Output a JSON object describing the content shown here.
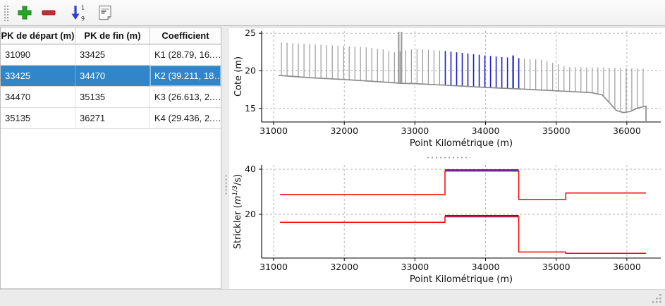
{
  "toolbar": {
    "buttons": [
      {
        "name": "add",
        "icon": "plus-icon"
      },
      {
        "name": "remove",
        "icon": "minus-icon"
      },
      {
        "name": "sort",
        "icon": "sort-ascending-icon"
      },
      {
        "name": "edit-notes",
        "icon": "notes-icon"
      }
    ]
  },
  "table": {
    "headers": [
      "PK de départ (m)",
      "PK de fin (m)",
      "Coefficient"
    ],
    "rows": [
      {
        "start": "31090",
        "end": "33425",
        "coef": "K1 (28.79, 16.…",
        "selected": false
      },
      {
        "start": "33425",
        "end": "34470",
        "coef": "K2 (39.211, 18…",
        "selected": true
      },
      {
        "start": "34470",
        "end": "35135",
        "coef": "K3 (26.613, 2.…",
        "selected": false
      },
      {
        "start": "35135",
        "end": "36271",
        "coef": "K4 (29.436, 2.…",
        "selected": false
      }
    ]
  },
  "colors": {
    "selection": "#3086c8",
    "icon_add_green": "#27a427",
    "icon_remove_red": "#c62f2f",
    "icon_sort_blue": "#2b41c8",
    "chart_red": "#ff0000",
    "chart_blue": "#2121d6",
    "comb_gray": "#9a9a9a",
    "comb_blue": "#1d1dcb",
    "bed_gray": "#8c8c8c",
    "grid_gray": "#b0b0b0"
  },
  "chart_data": [
    {
      "type": "profile-comb",
      "title": "",
      "xlabel": "Point Kilométrique (m)",
      "ylabel": "Cote (m)",
      "xlim": [
        30830,
        36480
      ],
      "ylim": [
        13.2,
        25.3
      ],
      "xticks": [
        31000,
        32000,
        33000,
        34000,
        35000,
        36000
      ],
      "yticks": [
        15,
        20,
        25
      ],
      "grid": true,
      "legend": "none",
      "line_spacing_m": 80,
      "x_start": 31110,
      "x_end": 36230,
      "highlight_range": [
        33425,
        34470
      ],
      "top_envelope": [
        [
          31090,
          23.8
        ],
        [
          31500,
          23.55
        ],
        [
          32000,
          23.3
        ],
        [
          32350,
          23.1
        ],
        [
          32550,
          22.85
        ],
        [
          32700,
          22.45
        ],
        [
          32860,
          22.7
        ],
        [
          33000,
          22.95
        ],
        [
          33200,
          22.8
        ],
        [
          33425,
          22.65
        ],
        [
          33800,
          22.25
        ],
        [
          34100,
          21.95
        ],
        [
          34350,
          21.75
        ],
        [
          34470,
          21.7
        ],
        [
          34800,
          21.45
        ],
        [
          35000,
          20.95
        ],
        [
          35150,
          20.5
        ],
        [
          35600,
          20.45
        ],
        [
          36230,
          20.3
        ]
      ],
      "bed_envelope": [
        [
          31070,
          19.4
        ],
        [
          31500,
          19.1
        ],
        [
          32000,
          18.85
        ],
        [
          32500,
          18.55
        ],
        [
          32800,
          18.35
        ],
        [
          33000,
          18.3
        ],
        [
          33425,
          18.1
        ],
        [
          34000,
          17.8
        ],
        [
          34470,
          17.6
        ],
        [
          35000,
          17.35
        ],
        [
          35500,
          17.1
        ],
        [
          35650,
          16.8
        ],
        [
          35750,
          15.8
        ],
        [
          35850,
          14.75
        ],
        [
          35950,
          14.45
        ],
        [
          36050,
          14.6
        ],
        [
          36150,
          15.05
        ],
        [
          36271,
          15.3
        ]
      ],
      "spikes": [
        [
          32770,
          25.2
        ],
        [
          32810,
          25.2
        ],
        [
          34390,
          22.05
        ]
      ],
      "end_drop": {
        "x": 36271,
        "from": 15.3,
        "to": 13.3
      }
    },
    {
      "type": "step",
      "title": "",
      "xlabel": "Point Kilométrique (m)",
      "ylabel_parts": [
        "Strickler (",
        "m",
        "1/3",
        "/s)"
      ],
      "xlim": [
        30830,
        36480
      ],
      "ylim": [
        0.6,
        41.9
      ],
      "xticks": [
        31000,
        32000,
        33000,
        34000,
        35000,
        36000
      ],
      "yticks": [
        20,
        40
      ],
      "grid": true,
      "legend": "none",
      "segments": [
        {
          "from": 31090,
          "to": 33425,
          "main": 28.79,
          "flood": 16.5,
          "selected": false
        },
        {
          "from": 33425,
          "to": 34470,
          "main": 39.211,
          "flood": 18.9,
          "selected": true
        },
        {
          "from": 34470,
          "to": 35135,
          "main": 26.613,
          "flood": 3.3,
          "selected": false
        },
        {
          "from": 35135,
          "to": 36271,
          "main": 29.436,
          "flood": 2.7,
          "selected": false
        }
      ]
    }
  ]
}
